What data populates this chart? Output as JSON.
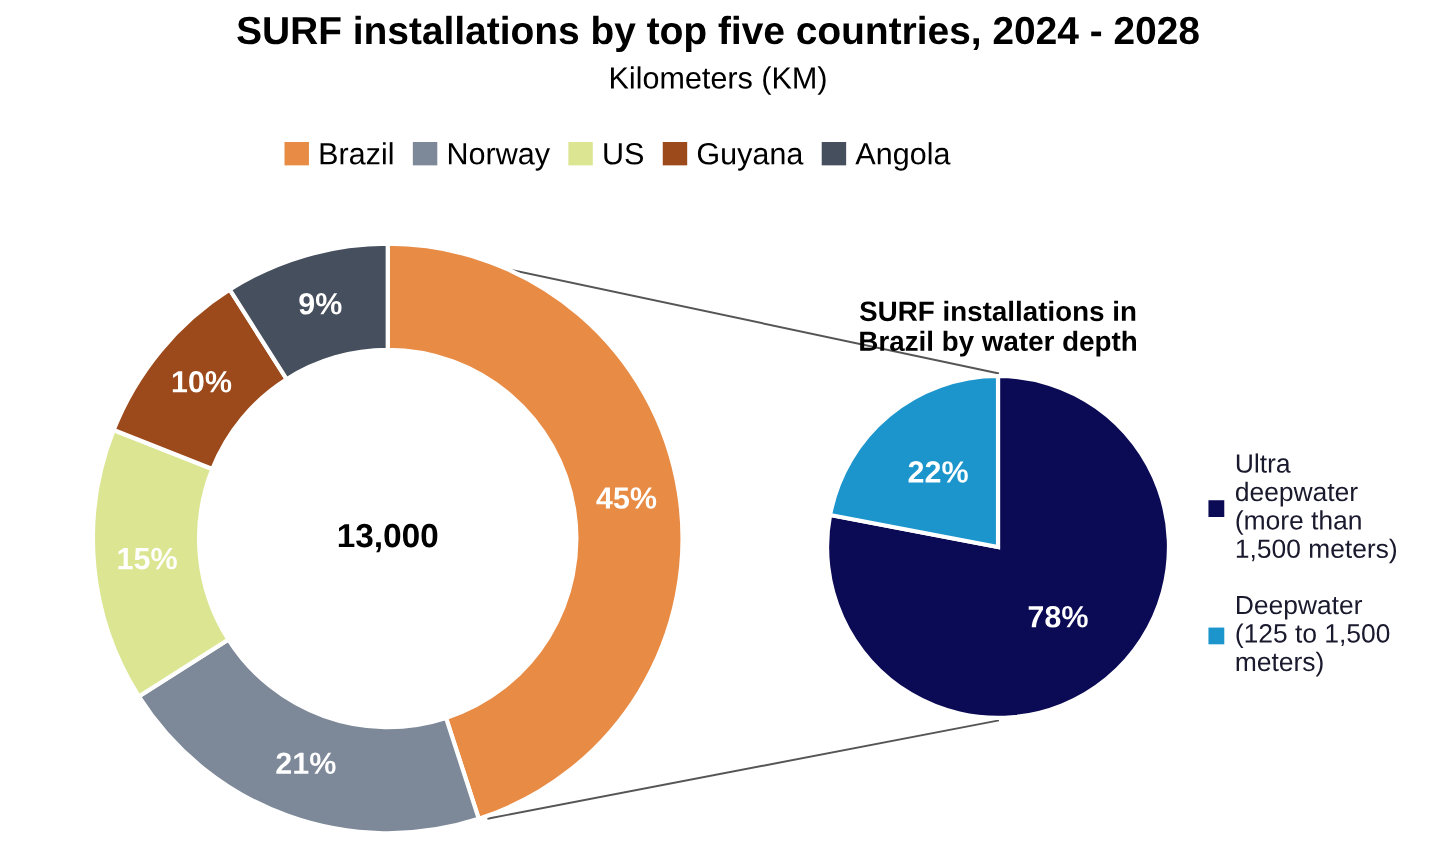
{
  "chart_data": [
    {
      "type": "donut",
      "title": "SURF installations by top five countries, 2024 - 2028",
      "subtitle": "Kilometers (KM)",
      "categories": [
        "Brazil",
        "Norway",
        "US",
        "Guyana",
        "Angola"
      ],
      "values": [
        45,
        21,
        15,
        10,
        9
      ],
      "value_labels": [
        "45%",
        "21%",
        "15%",
        "10%",
        "9%"
      ],
      "colors": [
        "#e88b45",
        "#7d8898",
        "#dce592",
        "#9c4a1b",
        "#464f5d"
      ],
      "annotations": [
        "13,000"
      ],
      "legend": "top"
    },
    {
      "type": "pie",
      "title": "SURF installations in\nBrazil by water depth",
      "categories": [
        "Ultra\ndeepwater\n(more than\n1,500 meters)",
        "Deepwater\n(125 to 1,500\nmeters)"
      ],
      "values": [
        78,
        22
      ],
      "value_labels": [
        "78%",
        "22%"
      ],
      "colors": [
        "#0b0a55",
        "#1b95cc"
      ],
      "legend": "right"
    }
  ]
}
